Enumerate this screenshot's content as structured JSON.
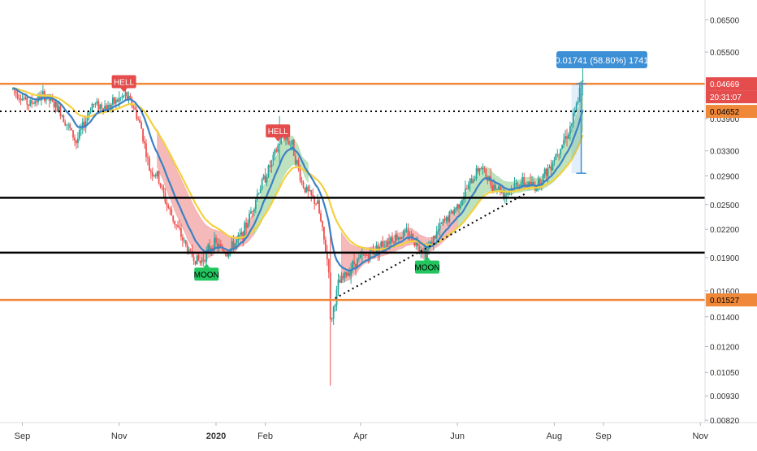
{
  "chart_data": {
    "type": "candlestick",
    "title": "",
    "xlabel": "",
    "ylabel": "",
    "ylim": [
      0.0081,
      0.072
    ],
    "yscale": "log",
    "y_ticks": [
      "0.06500",
      "0.05500",
      "0.04669",
      "0.04652",
      "0.03900",
      "0.03300",
      "0.02900",
      "0.02500",
      "0.02200",
      "0.01900",
      "0.01600",
      "0.01527",
      "0.01400",
      "0.01200",
      "0.01050",
      "0.00930",
      "0.00820"
    ],
    "x_ticks": [
      {
        "label": "Sep",
        "date": "2019-09-01"
      },
      {
        "label": "Nov",
        "date": "2019-11-01"
      },
      {
        "label": "2020",
        "date": "2020-01-01",
        "bold": true
      },
      {
        "label": "Feb",
        "date": "2020-02-01"
      },
      {
        "label": "Apr",
        "date": "2020-04-01"
      },
      {
        "label": "Jun",
        "date": "2020-06-01"
      },
      {
        "label": "Aug",
        "date": "2020-08-01"
      },
      {
        "label": "Sep",
        "date": "2020-09-01"
      },
      {
        "label": "Nov",
        "date": "2020-11-01"
      }
    ],
    "countdown": "20:31:07",
    "current_price": "0.04669",
    "second_price": "0.04652",
    "lower_price": "0.01527",
    "measure_label": "0.01741 (58.80%) 1741",
    "signals": [
      {
        "label": "HELL",
        "type": "sell",
        "date": "2019-11-04",
        "price": 0.0445
      },
      {
        "label": "HELL",
        "type": "sell",
        "date": "2020-02-09",
        "price": 0.0345
      },
      {
        "label": "MOON",
        "type": "buy",
        "date": "2019-12-26",
        "price": 0.0185
      },
      {
        "label": "MOON",
        "type": "buy",
        "date": "2020-05-13",
        "price": 0.0192
      }
    ],
    "horizontal_lines": [
      {
        "price": 0.04669,
        "color": "#f0883a",
        "style": "solid"
      },
      {
        "price": 0.01527,
        "color": "#f0883a",
        "style": "solid"
      },
      {
        "price": 0.0405,
        "color": "#000000",
        "style": "dotted"
      },
      {
        "price": 0.0259,
        "color": "#000000",
        "style": "solid"
      },
      {
        "price": 0.0195,
        "color": "#000000",
        "style": "solid"
      }
    ],
    "trendline": {
      "from": [
        "2020-03-16",
        0.0154
      ],
      "to": [
        "2020-07-15",
        0.0266
      ]
    },
    "measure": {
      "date": "2020-08-18",
      "from": 0.0294,
      "to": 0.0467
    },
    "price_path": [
      [
        "2019-08-26",
        0.0455
      ],
      [
        "2019-09-05",
        0.042
      ],
      [
        "2019-09-15",
        0.044
      ],
      [
        "2019-09-25",
        0.0405
      ],
      [
        "2019-10-05",
        0.0345
      ],
      [
        "2019-10-15",
        0.042
      ],
      [
        "2019-10-25",
        0.0415
      ],
      [
        "2019-11-05",
        0.044
      ],
      [
        "2019-11-10",
        0.0415
      ],
      [
        "2019-11-15",
        0.037
      ],
      [
        "2019-11-20",
        0.03
      ],
      [
        "2019-11-25",
        0.029
      ],
      [
        "2019-12-01",
        0.025
      ],
      [
        "2019-12-08",
        0.022
      ],
      [
        "2019-12-15",
        0.0195
      ],
      [
        "2019-12-22",
        0.0185
      ],
      [
        "2019-12-30",
        0.0205
      ],
      [
        "2020-01-08",
        0.0195
      ],
      [
        "2020-01-18",
        0.0215
      ],
      [
        "2020-01-28",
        0.027
      ],
      [
        "2020-02-05",
        0.031
      ],
      [
        "2020-02-12",
        0.036
      ],
      [
        "2020-02-18",
        0.034
      ],
      [
        "2020-02-24",
        0.028
      ],
      [
        "2020-02-28",
        0.0265
      ],
      [
        "2020-03-05",
        0.025
      ],
      [
        "2020-03-12",
        0.018
      ],
      [
        "2020-03-13",
        0.0135
      ],
      [
        "2020-03-18",
        0.0165
      ],
      [
        "2020-03-28",
        0.0185
      ],
      [
        "2020-04-10",
        0.0198
      ],
      [
        "2020-04-20",
        0.021
      ],
      [
        "2020-05-01",
        0.0215
      ],
      [
        "2020-05-12",
        0.0195
      ],
      [
        "2020-05-22",
        0.0225
      ],
      [
        "2020-06-01",
        0.0248
      ],
      [
        "2020-06-08",
        0.0275
      ],
      [
        "2020-06-15",
        0.0305
      ],
      [
        "2020-06-22",
        0.028
      ],
      [
        "2020-07-01",
        0.0265
      ],
      [
        "2020-07-10",
        0.028
      ],
      [
        "2020-07-20",
        0.0275
      ],
      [
        "2020-07-28",
        0.03
      ],
      [
        "2020-08-05",
        0.034
      ],
      [
        "2020-08-10",
        0.0365
      ],
      [
        "2020-08-14",
        0.04
      ],
      [
        "2020-08-18",
        0.0467
      ]
    ],
    "wicks": [
      {
        "date": "2020-03-13",
        "high": 0.0215,
        "low": 0.0098
      },
      {
        "date": "2020-08-19",
        "high": 0.0535,
        "low": 0.044
      },
      {
        "date": "2020-02-10",
        "high": 0.0395,
        "low": 0.031
      }
    ],
    "ema_fast_color": "#3b82c4",
    "sma_slow_color": "#f4d03f",
    "cloud_bear_color": "#f2a1a1",
    "cloud_bull_color": "#a8d8a8",
    "bull_color": "#26a69a",
    "bear_color": "#ef5350",
    "accent_orange": "#f0883a",
    "measure_blue": "#3d8fd6",
    "label_red": "#e54d4d",
    "moon_green": "#22c55e"
  }
}
